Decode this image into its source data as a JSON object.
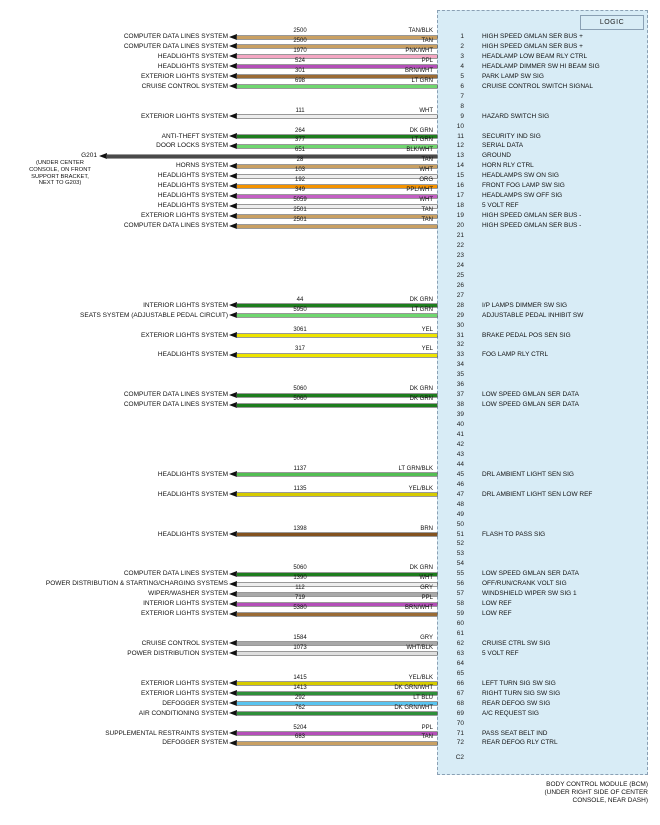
{
  "module": {
    "logic_label": "LOGIC",
    "connector_label": "C2",
    "caption_lines": [
      "BODY CONTROL MODULE (BCM)",
      "(UNDER RIGHT SIDE OF CENTER",
      "CONSOLE, NEAR DASH)"
    ]
  },
  "ground": {
    "name": "G201",
    "note_lines": [
      "(UNDER CENTER",
      "CONSOLE, ON FRONT",
      "SUPPORT BRACKET,",
      "NEXT TO G203)"
    ]
  },
  "wire_color_hex": {
    "TAN": "#C9A063",
    "TAN/BLK": "#C9A063",
    "PNK/WHT": "#F4A7C3",
    "PPL": "#B44FB8",
    "PPL/WHT": "#C45FC4",
    "BRN/WHT": "#9A6B35",
    "LT GRN": "#6FD66F",
    "WHT": "#EDEDED",
    "DK GRN": "#1E7D1E",
    "BLK/WHT": "#4A4A4A",
    "ORG": "#F59300",
    "YEL": "#EDE400",
    "LT GRN/BLK": "#53BE53",
    "YEL/BLK": "#D6CB00",
    "BRN": "#83521F",
    "GRY": "#A8A8A8",
    "WHT/BLK": "#DFDFDF",
    "DK GRN/WHT": "#2F8F3A",
    "LT BLU": "#59C4F0"
  },
  "module_box_color": "#d8ecf6",
  "pins": [
    {
      "pin": "1",
      "system": "COMPUTER DATA LINES SYSTEM",
      "wire": "2500",
      "color": "TAN/BLK",
      "signal": "HIGH SPEED GMLAN SER BUS +"
    },
    {
      "pin": "2",
      "system": "COMPUTER DATA LINES SYSTEM",
      "wire": "2500",
      "color": "TAN",
      "signal": "HIGH SPEED GMLAN SER BUS +"
    },
    {
      "pin": "3",
      "system": "HEADLIGHTS SYSTEM",
      "wire": "1970",
      "color": "PNK/WHT",
      "signal": "HEADLAMP LOW BEAM RLY CTRL"
    },
    {
      "pin": "4",
      "system": "HEADLIGHTS SYSTEM",
      "wire": "524",
      "color": "PPL",
      "signal": "HEADLAMP DIMMER SW HI BEAM SIG"
    },
    {
      "pin": "5",
      "system": "EXTERIOR LIGHTS SYSTEM",
      "wire": "301",
      "color": "BRN/WHT",
      "signal": "PARK LAMP SW SIG"
    },
    {
      "pin": "6",
      "system": "CRUISE CONTROL SYSTEM",
      "wire": "698",
      "color": "LT GRN",
      "signal": "CRUISE CONTROL SWITCH SIGNAL"
    },
    {
      "pin": "7"
    },
    {
      "pin": "8"
    },
    {
      "pin": "9",
      "system": "EXTERIOR LIGHTS SYSTEM",
      "wire": "111",
      "color": "WHT",
      "signal": "HAZARD SWITCH SIG"
    },
    {
      "pin": "10"
    },
    {
      "pin": "11",
      "system": "ANTI-THEFT SYSTEM",
      "wire": "264",
      "color": "DK GRN",
      "signal": "SECURITY IND SIG"
    },
    {
      "pin": "12",
      "system": "DOOR LOCKS SYSTEM",
      "wire": "377",
      "color": "LT GRN",
      "signal": "SERIAL DATA"
    },
    {
      "pin": "13",
      "system": "G201",
      "ground": true,
      "wire": "651",
      "color": "BLK/WHT",
      "signal": "GROUND"
    },
    {
      "pin": "14",
      "system": "HORNS SYSTEM",
      "wire": "28",
      "color": "TAN",
      "signal": "HORN RLY CTRL"
    },
    {
      "pin": "15",
      "system": "HEADLIGHTS SYSTEM",
      "wire": "103",
      "color": "WHT",
      "signal": "HEADLAMPS SW ON SIG"
    },
    {
      "pin": "16",
      "system": "HEADLIGHTS SYSTEM",
      "wire": "192",
      "color": "ORG",
      "signal": "FRONT FOG LAMP SW SIG"
    },
    {
      "pin": "17",
      "system": "HEADLIGHTS SYSTEM",
      "wire": "349",
      "color": "PPL/WHT",
      "signal": "HEADLAMPS SW OFF SIG"
    },
    {
      "pin": "18",
      "system": "HEADLIGHTS SYSTEM",
      "wire": "5059",
      "color": "WHT",
      "signal": "5 VOLT REF"
    },
    {
      "pin": "19",
      "system": "EXTERIOR LIGHTS SYSTEM",
      "wire": "2501",
      "color": "TAN",
      "signal": "HIGH SPEED GMLAN SER BUS -"
    },
    {
      "pin": "20",
      "system": "COMPUTER DATA LINES SYSTEM",
      "wire": "2501",
      "color": "TAN",
      "signal": "HIGH SPEED GMLAN SER BUS -"
    },
    {
      "pin": "21"
    },
    {
      "pin": "22"
    },
    {
      "pin": "23"
    },
    {
      "pin": "24"
    },
    {
      "pin": "25"
    },
    {
      "pin": "26"
    },
    {
      "pin": "27"
    },
    {
      "pin": "28",
      "system": "INTERIOR LIGHTS SYSTEM",
      "wire": "44",
      "color": "DK GRN",
      "signal": "I/P LAMPS DIMMER SW SIG"
    },
    {
      "pin": "29",
      "system": "SEATS SYSTEM (ADJUSTABLE PEDAL CIRCUIT)",
      "wire": "5950",
      "color": "LT GRN",
      "signal": "ADJUSTABLE PEDAL INHIBIT SW"
    },
    {
      "pin": "30"
    },
    {
      "pin": "31",
      "system": "EXTERIOR LIGHTS SYSTEM",
      "wire": "3061",
      "color": "YEL",
      "signal": "BRAKE PEDAL POS SEN SIG"
    },
    {
      "pin": "32"
    },
    {
      "pin": "33",
      "system": "HEADLIGHTS SYSTEM",
      "wire": "317",
      "color": "YEL",
      "signal": "FOG LAMP RLY CTRL"
    },
    {
      "pin": "34"
    },
    {
      "pin": "35"
    },
    {
      "pin": "36"
    },
    {
      "pin": "37",
      "system": "COMPUTER DATA LINES SYSTEM",
      "wire": "5060",
      "color": "DK GRN",
      "signal": "LOW SPEED GMLAN SER DATA"
    },
    {
      "pin": "38",
      "system": "COMPUTER DATA LINES SYSTEM",
      "wire": "5060",
      "color": "DK GRN",
      "signal": "LOW SPEED GMLAN SER DATA"
    },
    {
      "pin": "39"
    },
    {
      "pin": "40"
    },
    {
      "pin": "41"
    },
    {
      "pin": "42"
    },
    {
      "pin": "43"
    },
    {
      "pin": "44"
    },
    {
      "pin": "45",
      "system": "HEADLIGHTS SYSTEM",
      "wire": "1137",
      "color": "LT GRN/BLK",
      "signal": "DRL AMBIENT LIGHT SEN SIG"
    },
    {
      "pin": "46"
    },
    {
      "pin": "47",
      "system": "HEADLIGHTS SYSTEM",
      "wire": "1135",
      "color": "YEL/BLK",
      "signal": "DRL AMBIENT LIGHT SEN LOW REF"
    },
    {
      "pin": "48"
    },
    {
      "pin": "49"
    },
    {
      "pin": "50"
    },
    {
      "pin": "51",
      "system": "HEADLIGHTS SYSTEM",
      "wire": "1398",
      "color": "BRN",
      "signal": "FLASH TO PASS SIG"
    },
    {
      "pin": "52"
    },
    {
      "pin": "53"
    },
    {
      "pin": "54"
    },
    {
      "pin": "55",
      "system": "COMPUTER DATA LINES SYSTEM",
      "wire": "5060",
      "color": "DK GRN",
      "signal": "LOW SPEED GMLAN SER DATA"
    },
    {
      "pin": "56",
      "system": "POWER DISTRIBUTION & STARTING/CHARGING SYSTEMS",
      "wire": "1390",
      "color": "WHT",
      "signal": "OFF/RUN/CRANK VOLT SIG"
    },
    {
      "pin": "57",
      "system": "WIPER/WASHER SYSTEM",
      "wire": "112",
      "color": "GRY",
      "signal": "WINDSHIELD WIPER SW SIG 1"
    },
    {
      "pin": "58",
      "system": "INTERIOR LIGHTS SYSTEM",
      "wire": "719",
      "color": "PPL",
      "signal": "LOW REF"
    },
    {
      "pin": "59",
      "system": "EXTERIOR LIGHTS SYSTEM",
      "wire": "5380",
      "color": "BRN/WHT",
      "signal": "LOW REF"
    },
    {
      "pin": "60"
    },
    {
      "pin": "61"
    },
    {
      "pin": "62",
      "system": "CRUISE CONTROL SYSTEM",
      "wire": "1584",
      "color": "GRY",
      "signal": "CRUISE CTRL SW SIG"
    },
    {
      "pin": "63",
      "system": "POWER DISTRIBUTION SYSTEM",
      "wire": "1073",
      "color": "WHT/BLK",
      "signal": "5 VOLT REF"
    },
    {
      "pin": "64"
    },
    {
      "pin": "65"
    },
    {
      "pin": "66",
      "system": "EXTERIOR LIGHTS SYSTEM",
      "wire": "1415",
      "color": "YEL/BLK",
      "signal": "LEFT TURN SIG SW SIG"
    },
    {
      "pin": "67",
      "system": "EXTERIOR LIGHTS SYSTEM",
      "wire": "1413",
      "color": "DK GRN/WHT",
      "signal": "RIGHT TURN SIG SW SIG"
    },
    {
      "pin": "68",
      "system": "DEFOGGER SYSTEM",
      "wire": "292",
      "color": "LT BLU",
      "signal": "REAR DEFOG SW SIG"
    },
    {
      "pin": "69",
      "system": "AIR CONDITIONING SYSTEM",
      "wire": "762",
      "color": "DK GRN/WHT",
      "signal": "A/C REQUEST SIG"
    },
    {
      "pin": "70"
    },
    {
      "pin": "71",
      "system": "SUPPLEMENTAL RESTRAINTS SYSTEM",
      "wire": "5204",
      "color": "PPL",
      "signal": "PASS SEAT BELT IND"
    },
    {
      "pin": "72",
      "system": "DEFOGGER SYSTEM",
      "wire": "683",
      "color": "TAN",
      "signal": "REAR DEFOG RLY CTRL"
    }
  ]
}
